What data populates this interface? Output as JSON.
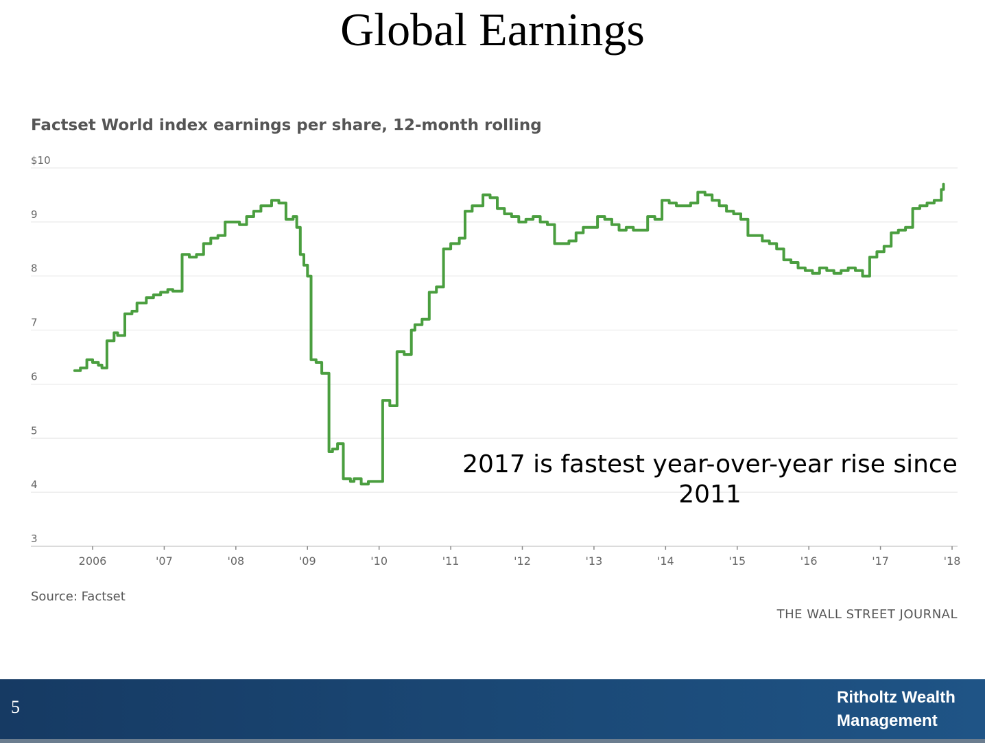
{
  "slide": {
    "title": "Global Earnings",
    "page_number": "5",
    "brand_line1": "Ritholtz Wealth",
    "brand_line2": "Management"
  },
  "annotation": {
    "line1": "2017 is fastest year-over-year rise since",
    "line2": "2011"
  },
  "source": "Source: Factset",
  "publisher": "THE WALL STREET JOURNAL",
  "colors": {
    "series": "#4a9e3f",
    "grid": "#e4e4e4",
    "text": "#555555",
    "footer": "#1b4a78"
  },
  "chart_data": {
    "type": "line",
    "title": "Factset World index earnings per share, 12-month rolling",
    "xlabel": "",
    "ylabel": "",
    "ylim": [
      3,
      10
    ],
    "xlim": [
      2005.75,
      2018.0
    ],
    "yticks": [
      {
        "value": 10,
        "label": "$10"
      },
      {
        "value": 9,
        "label": "9"
      },
      {
        "value": 8,
        "label": "8"
      },
      {
        "value": 7,
        "label": "7"
      },
      {
        "value": 6,
        "label": "6"
      },
      {
        "value": 5,
        "label": "5"
      },
      {
        "value": 4,
        "label": "4"
      },
      {
        "value": 3,
        "label": "3"
      }
    ],
    "xticks": [
      {
        "value": 2006,
        "label": "2006"
      },
      {
        "value": 2007,
        "label": "'07"
      },
      {
        "value": 2008,
        "label": "'08"
      },
      {
        "value": 2009,
        "label": "'09"
      },
      {
        "value": 2010,
        "label": "'10"
      },
      {
        "value": 2011,
        "label": "'11"
      },
      {
        "value": 2012,
        "label": "'12"
      },
      {
        "value": 2013,
        "label": "'13"
      },
      {
        "value": 2014,
        "label": "'14"
      },
      {
        "value": 2015,
        "label": "'15"
      },
      {
        "value": 2016,
        "label": "'16"
      },
      {
        "value": 2017,
        "label": "'17"
      },
      {
        "value": 2018,
        "label": "'18"
      }
    ],
    "grid": true,
    "series": [
      {
        "name": "",
        "x": [
          2005.75,
          2005.83,
          2005.92,
          2006.0,
          2006.08,
          2006.13,
          2006.2,
          2006.3,
          2006.35,
          2006.45,
          2006.55,
          2006.62,
          2006.75,
          2006.85,
          2006.95,
          2007.05,
          2007.12,
          2007.25,
          2007.35,
          2007.45,
          2007.55,
          2007.65,
          2007.75,
          2007.85,
          2007.95,
          2008.05,
          2008.15,
          2008.25,
          2008.35,
          2008.5,
          2008.6,
          2008.7,
          2008.8,
          2008.85,
          2008.9,
          2008.95,
          2009.0,
          2009.05,
          2009.12,
          2009.2,
          2009.3,
          2009.35,
          2009.42,
          2009.5,
          2009.6,
          2009.65,
          2009.75,
          2009.85,
          2009.95,
          2010.05,
          2010.15,
          2010.25,
          2010.35,
          2010.45,
          2010.5,
          2010.6,
          2010.7,
          2010.8,
          2010.9,
          2011.0,
          2011.12,
          2011.2,
          2011.3,
          2011.38,
          2011.45,
          2011.55,
          2011.65,
          2011.75,
          2011.85,
          2011.95,
          2012.05,
          2012.15,
          2012.25,
          2012.35,
          2012.45,
          2012.55,
          2012.65,
          2012.75,
          2012.85,
          2012.95,
          2013.05,
          2013.15,
          2013.25,
          2013.35,
          2013.45,
          2013.55,
          2013.65,
          2013.75,
          2013.85,
          2013.95,
          2014.05,
          2014.15,
          2014.25,
          2014.35,
          2014.45,
          2014.55,
          2014.65,
          2014.75,
          2014.85,
          2014.95,
          2015.05,
          2015.15,
          2015.25,
          2015.35,
          2015.45,
          2015.55,
          2015.65,
          2015.75,
          2015.85,
          2015.95,
          2016.05,
          2016.15,
          2016.25,
          2016.35,
          2016.45,
          2016.55,
          2016.65,
          2016.75,
          2016.85,
          2016.95,
          2017.05,
          2017.15,
          2017.25,
          2017.35,
          2017.45,
          2017.55,
          2017.65,
          2017.75,
          2017.85,
          2017.88
        ],
        "y": [
          6.25,
          6.3,
          6.45,
          6.4,
          6.35,
          6.3,
          6.8,
          6.95,
          6.9,
          7.3,
          7.35,
          7.5,
          7.6,
          7.65,
          7.7,
          7.75,
          7.72,
          8.4,
          8.35,
          8.4,
          8.6,
          8.7,
          8.75,
          9.0,
          9.0,
          8.95,
          9.1,
          9.2,
          9.3,
          9.4,
          9.35,
          9.05,
          9.1,
          8.9,
          8.4,
          8.2,
          8.0,
          6.45,
          6.4,
          6.2,
          4.75,
          4.8,
          4.9,
          4.25,
          4.2,
          4.25,
          4.15,
          4.2,
          4.2,
          5.7,
          5.6,
          6.6,
          6.55,
          7.0,
          7.1,
          7.2,
          7.7,
          7.8,
          8.5,
          8.6,
          8.7,
          9.2,
          9.3,
          9.3,
          9.5,
          9.45,
          9.25,
          9.15,
          9.1,
          9.0,
          9.05,
          9.1,
          9.0,
          8.95,
          8.6,
          8.6,
          8.65,
          8.8,
          8.9,
          8.9,
          9.1,
          9.05,
          8.95,
          8.85,
          8.9,
          8.85,
          8.85,
          9.1,
          9.05,
          9.4,
          9.35,
          9.3,
          9.3,
          9.35,
          9.55,
          9.5,
          9.4,
          9.3,
          9.2,
          9.15,
          9.05,
          8.75,
          8.75,
          8.65,
          8.6,
          8.5,
          8.3,
          8.25,
          8.15,
          8.1,
          8.05,
          8.15,
          8.1,
          8.05,
          8.1,
          8.15,
          8.1,
          8.0,
          8.35,
          8.45,
          8.55,
          8.8,
          8.85,
          8.9,
          9.25,
          9.3,
          9.35,
          9.4,
          9.6,
          9.7
        ]
      }
    ],
    "legend": "none"
  }
}
